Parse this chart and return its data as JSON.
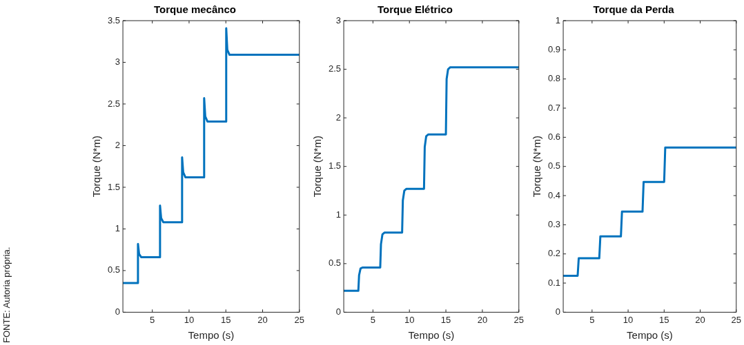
{
  "chart_data": [
    {
      "type": "line",
      "title": "Torque mecânco",
      "xlabel": "Tempo (s)",
      "ylabel": "Torque (N*m)",
      "color": "#0072bd",
      "xlim": [
        1,
        25
      ],
      "xticks": [
        5,
        10,
        15,
        20,
        25
      ],
      "ylim": [
        0,
        3.5
      ],
      "yticks": [
        0,
        0.5,
        1,
        1.5,
        2,
        2.5,
        3,
        3.5
      ],
      "x": [
        1,
        3,
        3.05,
        3.2,
        3.5,
        6,
        6.05,
        6.2,
        6.5,
        9,
        9.05,
        9.2,
        9.5,
        12,
        12.05,
        12.2,
        12.5,
        15,
        15.05,
        15.2,
        15.5,
        25
      ],
      "values": [
        0.35,
        0.35,
        0.82,
        0.7,
        0.66,
        0.66,
        1.28,
        1.13,
        1.08,
        1.08,
        1.86,
        1.68,
        1.62,
        1.62,
        2.57,
        2.35,
        2.29,
        2.29,
        3.41,
        3.15,
        3.09,
        3.09
      ],
      "annotations": [
        "FONTE: Autoria própria."
      ]
    },
    {
      "type": "line",
      "title": "Torque Elétrico",
      "xlabel": "Tempo (s)",
      "ylabel": "Torque (N*m)",
      "color": "#0072bd",
      "xlim": [
        1,
        25
      ],
      "xticks": [
        5,
        10,
        15,
        20,
        25
      ],
      "ylim": [
        0,
        3
      ],
      "yticks": [
        0,
        0.5,
        1,
        1.5,
        2,
        2.5,
        3
      ],
      "x": [
        1,
        3,
        3.1,
        3.3,
        3.6,
        6,
        6.1,
        6.3,
        6.6,
        9,
        9.1,
        9.3,
        9.6,
        12,
        12.1,
        12.3,
        12.6,
        15,
        15.1,
        15.3,
        15.6,
        25
      ],
      "values": [
        0.22,
        0.22,
        0.38,
        0.45,
        0.46,
        0.46,
        0.7,
        0.8,
        0.82,
        0.82,
        1.15,
        1.25,
        1.27,
        1.27,
        1.7,
        1.81,
        1.83,
        1.83,
        2.4,
        2.5,
        2.52,
        2.52
      ]
    },
    {
      "type": "line",
      "title": "Torque da Perda",
      "xlabel": "Tempo (s)",
      "ylabel": "Torque (N*m)",
      "color": "#0072bd",
      "xlim": [
        1,
        25
      ],
      "xticks": [
        5,
        10,
        15,
        20,
        25
      ],
      "ylim": [
        0,
        1
      ],
      "yticks": [
        0,
        0.1,
        0.2,
        0.3,
        0.4,
        0.5,
        0.6,
        0.7,
        0.8,
        0.9,
        1
      ],
      "x": [
        1,
        3,
        3.15,
        6,
        6.15,
        9,
        9.15,
        12,
        12.15,
        15,
        15.15,
        25
      ],
      "values": [
        0.125,
        0.125,
        0.185,
        0.185,
        0.26,
        0.26,
        0.345,
        0.345,
        0.447,
        0.447,
        0.565,
        0.565
      ]
    }
  ]
}
